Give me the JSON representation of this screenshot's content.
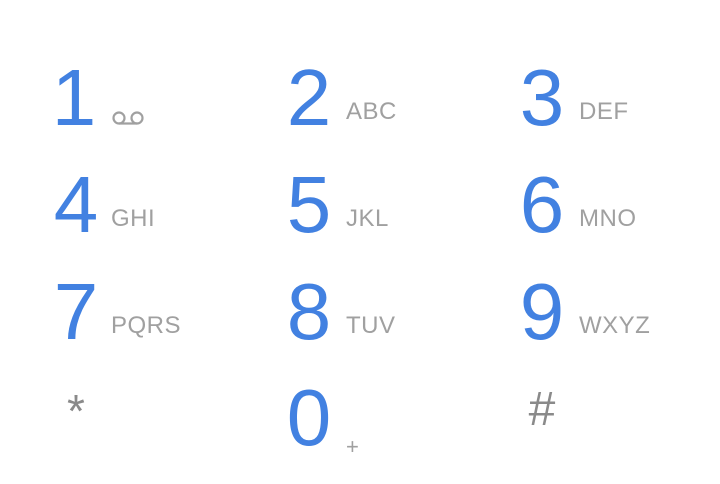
{
  "dialpad": {
    "keys": [
      {
        "digit": "1",
        "letters": ""
      },
      {
        "digit": "2",
        "letters": "ABC"
      },
      {
        "digit": "3",
        "letters": "DEF"
      },
      {
        "digit": "4",
        "letters": "GHI"
      },
      {
        "digit": "5",
        "letters": "JKL"
      },
      {
        "digit": "6",
        "letters": "MNO"
      },
      {
        "digit": "7",
        "letters": "PQRS"
      },
      {
        "digit": "8",
        "letters": "TUV"
      },
      {
        "digit": "9",
        "letters": "WXYZ"
      },
      {
        "digit": "*",
        "letters": ""
      },
      {
        "digit": "0",
        "letters": "+"
      },
      {
        "digit": "#",
        "letters": ""
      }
    ],
    "voicemail_icon": "voicemail-icon",
    "colors": {
      "digit": "#4281e1",
      "letters": "#a0a0a0",
      "symbol": "#8a8a8a"
    }
  }
}
